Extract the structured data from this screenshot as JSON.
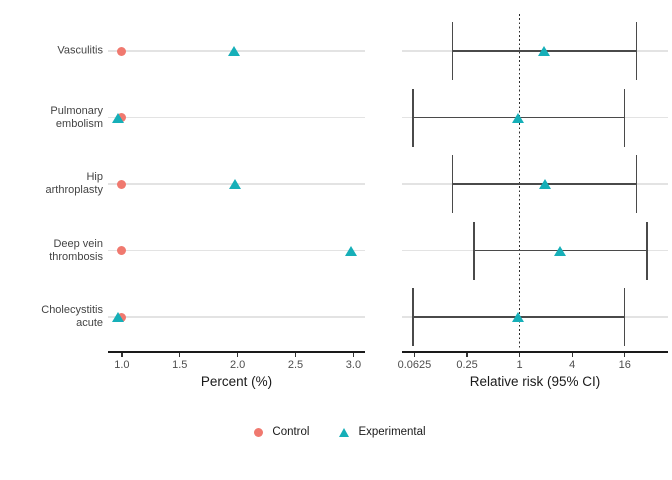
{
  "legend": {
    "items": [
      {
        "label": "Control",
        "marker": "circle",
        "color": "#F0796F"
      },
      {
        "label": "Experimental",
        "marker": "triangle",
        "color": "#16AFB8"
      }
    ]
  },
  "colors": {
    "control": "#F0796F",
    "experimental": "#16AFB8",
    "ci_bar": "#4a4a4a",
    "gridline": "#e3e3e3",
    "axis": "#1a1a1a",
    "tick_text": "#4d4d4d"
  },
  "chart_data": [
    {
      "type": "scatter",
      "panel": "left",
      "title": "",
      "xlabel": "Percent (%)",
      "ylabel": "",
      "scale": "linear",
      "xlim": [
        0.88,
        3.1
      ],
      "x_ticks": [
        1.0,
        1.5,
        2.0,
        2.5,
        3.0
      ],
      "x_tick_labels": [
        "1.0",
        "1.5",
        "2.0",
        "2.5",
        "3.0"
      ],
      "grid": "horizontal",
      "categories": [
        "Vasculitis",
        "Pulmonary embolism",
        "Hip arthroplasty",
        "Deep vein thrombosis",
        "Cholecystitis acute"
      ],
      "category_display": [
        "Vasculitis",
        "Pulmonary\nembolism",
        "Hip\narthroplasty",
        "Deep vein\nthrombosis",
        "Cholecystitis\nacute"
      ],
      "series": [
        {
          "name": "Control",
          "marker": "circle",
          "color": "#F0796F",
          "values": [
            1.0,
            1.0,
            1.0,
            1.0,
            1.0
          ]
        },
        {
          "name": "Experimental",
          "marker": "triangle",
          "color": "#16AFB8",
          "values": [
            1.97,
            0.97,
            1.98,
            2.98,
            0.97
          ]
        }
      ]
    },
    {
      "type": "forest",
      "panel": "right",
      "title": "",
      "xlabel": "Relative risk (95% CI)",
      "ylabel": "",
      "scale": "log",
      "xlim": [
        0.045,
        50
      ],
      "x_ticks": [
        0.0625,
        0.25,
        1,
        4,
        16
      ],
      "x_tick_labels": [
        "0.0625",
        "0.25",
        "1",
        "4",
        "16"
      ],
      "grid": "horizontal",
      "reference_line": 1,
      "categories": [
        "Vasculitis",
        "Pulmonary embolism",
        "Hip arthroplasty",
        "Deep vein thrombosis",
        "Cholecystitis acute"
      ],
      "series": [
        {
          "name": "Experimental",
          "marker": "triangle",
          "color": "#16AFB8",
          "estimates": [
            1.9,
            0.97,
            1.95,
            2.9,
            0.97
          ],
          "ci_low": [
            0.17,
            0.06,
            0.17,
            0.3,
            0.06
          ],
          "ci_high": [
            21.9,
            15.8,
            21.9,
            28.6,
            15.8
          ]
        }
      ]
    }
  ]
}
